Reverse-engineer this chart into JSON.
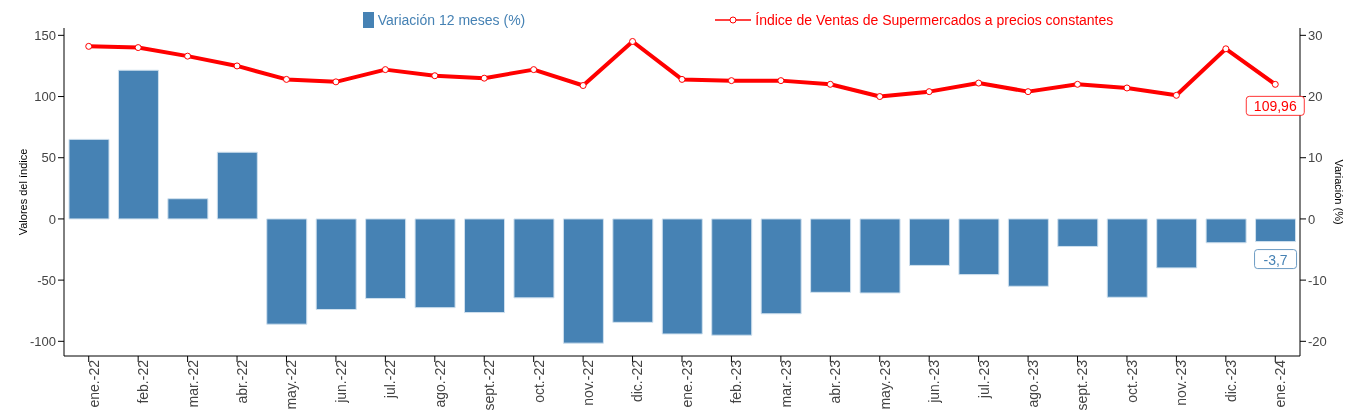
{
  "chart_data": {
    "type": "bar",
    "categories": [
      "ene.-22",
      "feb.-22",
      "mar.-22",
      "abr.-22",
      "may.-22",
      "jun.-22",
      "jul.-22",
      "ago.-22",
      "sept.-22",
      "oct.-22",
      "nov.-22",
      "dic.-22",
      "ene.-23",
      "feb.-23",
      "mar.-23",
      "abr.-23",
      "may.-23",
      "jun.-23",
      "jul.-23",
      "ago.-23",
      "sept.-23",
      "oct.-23",
      "nov.-23",
      "dic.-23",
      "ene.-24"
    ],
    "series": [
      {
        "name": "Variación 12 meses (%)",
        "axis": "y2",
        "color": "#4682b4",
        "values": [
          13.0,
          24.3,
          3.3,
          10.9,
          -17.2,
          -14.8,
          -13.0,
          -14.5,
          -15.3,
          -12.9,
          -20.3,
          -16.9,
          -18.8,
          -19.0,
          -15.5,
          -12.0,
          -12.1,
          -7.6,
          -9.1,
          -11.0,
          -4.5,
          -12.8,
          -8.0,
          -3.9,
          -3.7
        ],
        "value_labels": [
          null,
          null,
          null,
          null,
          null,
          null,
          null,
          null,
          null,
          null,
          null,
          null,
          null,
          null,
          null,
          null,
          null,
          null,
          null,
          null,
          null,
          null,
          null,
          null,
          "-3,7"
        ]
      },
      {
        "name": "Índice de Ventas de Supermercados a precios constantes",
        "type": "line",
        "color": "#ff0000",
        "values": [
          141,
          140,
          133,
          125,
          114,
          112,
          122,
          117,
          115,
          122,
          109,
          145,
          114,
          113,
          113,
          110,
          100,
          104,
          111,
          104,
          110,
          107,
          101,
          139,
          109.96
        ],
        "value_labels": [
          null,
          null,
          null,
          null,
          null,
          null,
          null,
          null,
          null,
          null,
          null,
          null,
          null,
          null,
          null,
          null,
          null,
          null,
          null,
          null,
          null,
          null,
          null,
          null,
          "109,96"
        ]
      }
    ],
    "ylabel": "Valores del índice",
    "y2label": "Variación (%)",
    "ylim": [
      -112,
      156
    ],
    "yticks": [
      -100,
      -50,
      0,
      50,
      100,
      150
    ],
    "y2lim": [
      -22.4,
      31.2
    ],
    "y2ticks": [
      -20,
      -10,
      0,
      10,
      20,
      30
    ],
    "legend": "top",
    "marker": "circle",
    "line_style": "solid",
    "grid": false
  }
}
